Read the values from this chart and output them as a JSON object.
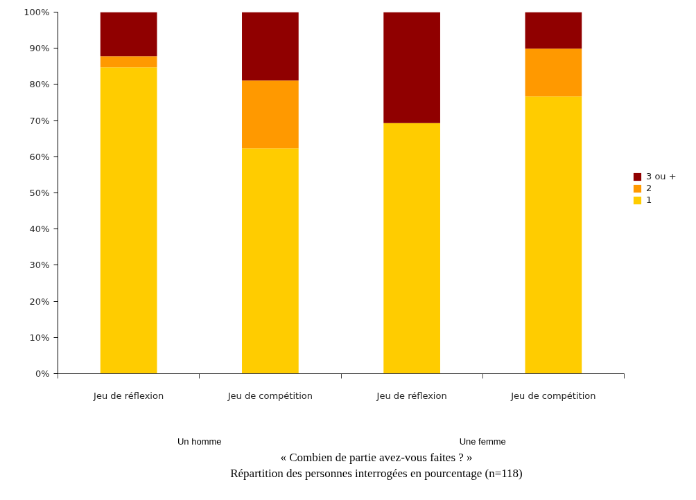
{
  "chart_data": {
    "type": "bar",
    "stacked": true,
    "title": "« Combien de partie avez-vous faites ? »",
    "subtitle": "Répartition des personnes interrogées en pourcentage (n=118)",
    "categories": [
      "Jeu de réflexion",
      "Jeu de compétition",
      "Jeu de réflexion",
      "Jeu de compétition"
    ],
    "annotations": [
      "Un homme",
      "Une femme"
    ],
    "series": [
      {
        "name": "1",
        "color": "#ffcc00",
        "values": [
          84.7,
          62.3,
          69.3,
          76.7
        ]
      },
      {
        "name": "2",
        "color": "#ff9900",
        "values": [
          3.1,
          18.8,
          0,
          13.2
        ]
      },
      {
        "name": "3 ou +",
        "color": "#900000",
        "values": [
          12.2,
          18.9,
          30.7,
          10.1
        ]
      }
    ],
    "ylim": [
      0,
      100
    ],
    "yticks": [
      {
        "value": 0,
        "label": "0%"
      },
      {
        "value": 10,
        "label": "10%"
      },
      {
        "value": 20,
        "label": "20%"
      },
      {
        "value": 30,
        "label": "30%"
      },
      {
        "value": 40,
        "label": "40%"
      },
      {
        "value": 50,
        "label": "50%"
      },
      {
        "value": 60,
        "label": "60%"
      },
      {
        "value": 70,
        "label": "70%"
      },
      {
        "value": 80,
        "label": "80%"
      },
      {
        "value": 90,
        "label": "90%"
      },
      {
        "value": 100,
        "label": "100%"
      }
    ],
    "legend": "right"
  }
}
